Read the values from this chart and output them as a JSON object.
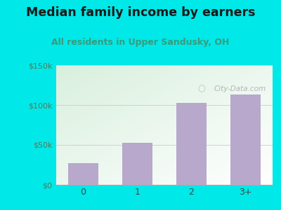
{
  "title": "Median family income by earners",
  "subtitle": "All residents in Upper Sandusky, OH",
  "categories": [
    "0",
    "1",
    "2",
    "3+"
  ],
  "values": [
    27000,
    53000,
    103000,
    113000
  ],
  "bar_color": "#b8a8cc",
  "ylim": [
    0,
    150000
  ],
  "yticks": [
    0,
    50000,
    100000,
    150000
  ],
  "ytick_labels": [
    "$0",
    "$50k",
    "$100k",
    "$150k"
  ],
  "outer_bg": "#00e8e8",
  "plot_bg_topleft": "#d8eedd",
  "plot_bg_bottomright": "#ffffff",
  "title_color": "#1a1a1a",
  "subtitle_color": "#3a9a7a",
  "title_fontsize": 12.5,
  "subtitle_fontsize": 9,
  "tick_label_color": "#557755",
  "watermark": "City-Data.com",
  "watermark_color": "#aaaaaa",
  "grid_color": "#cccccc"
}
